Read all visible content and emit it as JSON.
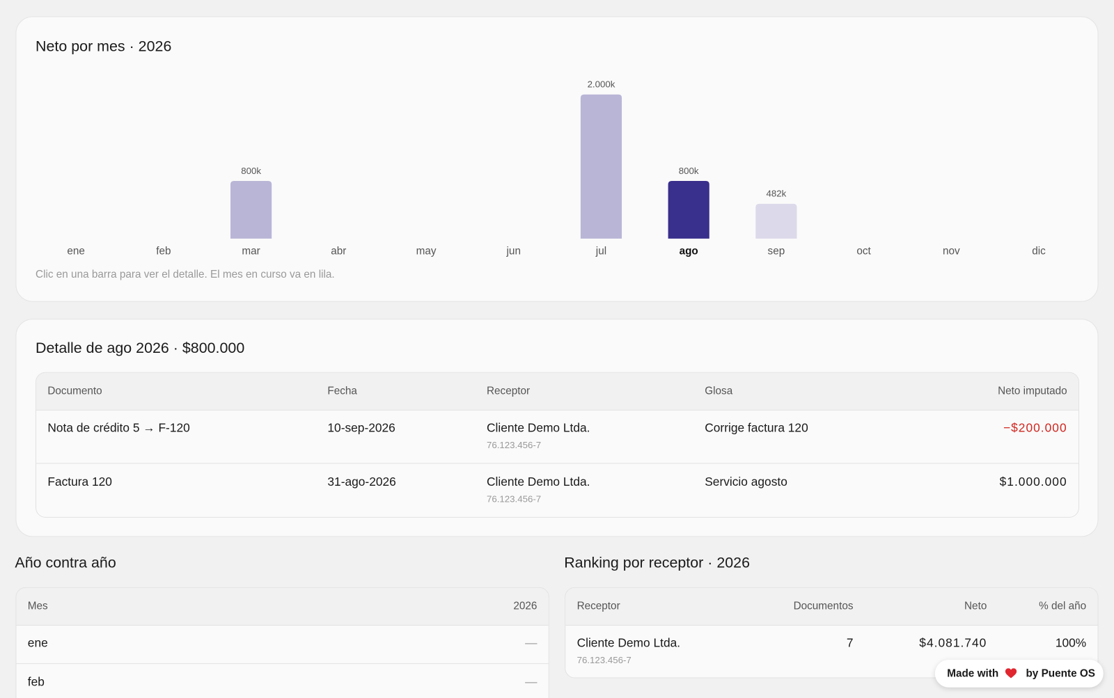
{
  "chart_card": {
    "title": "Neto por mes · 2026",
    "note": "Clic en una barra para ver el detalle. El mes en curso va en lila."
  },
  "chart_data": {
    "type": "bar",
    "categories": [
      "ene",
      "feb",
      "mar",
      "abr",
      "may",
      "jun",
      "jul",
      "ago",
      "sep",
      "oct",
      "nov",
      "dic"
    ],
    "values": [
      null,
      null,
      800,
      null,
      null,
      null,
      2000,
      800,
      482,
      null,
      null,
      null
    ],
    "value_labels": [
      null,
      null,
      "800k",
      null,
      null,
      null,
      "2.000k",
      "800k",
      "482k",
      null,
      null,
      null
    ],
    "colors": [
      null,
      null,
      "#b8b5d6",
      null,
      null,
      null,
      "#b8b5d6",
      "#392f8c",
      "#dcd9ea",
      null,
      null,
      null
    ],
    "selected": 7,
    "ylim": [
      0,
      2000
    ]
  },
  "detail": {
    "title": "Detalle de ago 2026 · $800.000",
    "headers": [
      "Documento",
      "Fecha",
      "Receptor",
      "Glosa",
      "Neto imputado"
    ],
    "rows": [
      {
        "documento": "Nota de crédito 5 → F-120",
        "fecha": "10-sep-2026",
        "receptor": "Cliente Demo Ltda.",
        "rut": "76.123.456-7",
        "glosa": "Corrige factura 120",
        "neto": "−$200.000"
      },
      {
        "documento": "Factura 120",
        "fecha": "31-ago-2026",
        "receptor": "Cliente Demo Ltda.",
        "rut": "76.123.456-7",
        "glosa": "Servicio agosto",
        "neto": "$1.000.000"
      }
    ]
  },
  "yoy": {
    "title": "Año contra año",
    "headers": [
      "Mes",
      "2026"
    ],
    "rows": [
      [
        "ene",
        "—"
      ],
      [
        "feb",
        "—"
      ]
    ]
  },
  "ranking": {
    "title": "Ranking por receptor · 2026",
    "headers": [
      "Receptor",
      "Documentos",
      "Neto",
      "% del año"
    ],
    "rows": [
      {
        "receptor": "Cliente Demo Ltda.",
        "rut": "76.123.456-7",
        "documentos": "7",
        "neto": "$4.081.740",
        "pct": "100%"
      }
    ]
  },
  "badge": {
    "left": "Made with",
    "right": "by Puente OS"
  }
}
